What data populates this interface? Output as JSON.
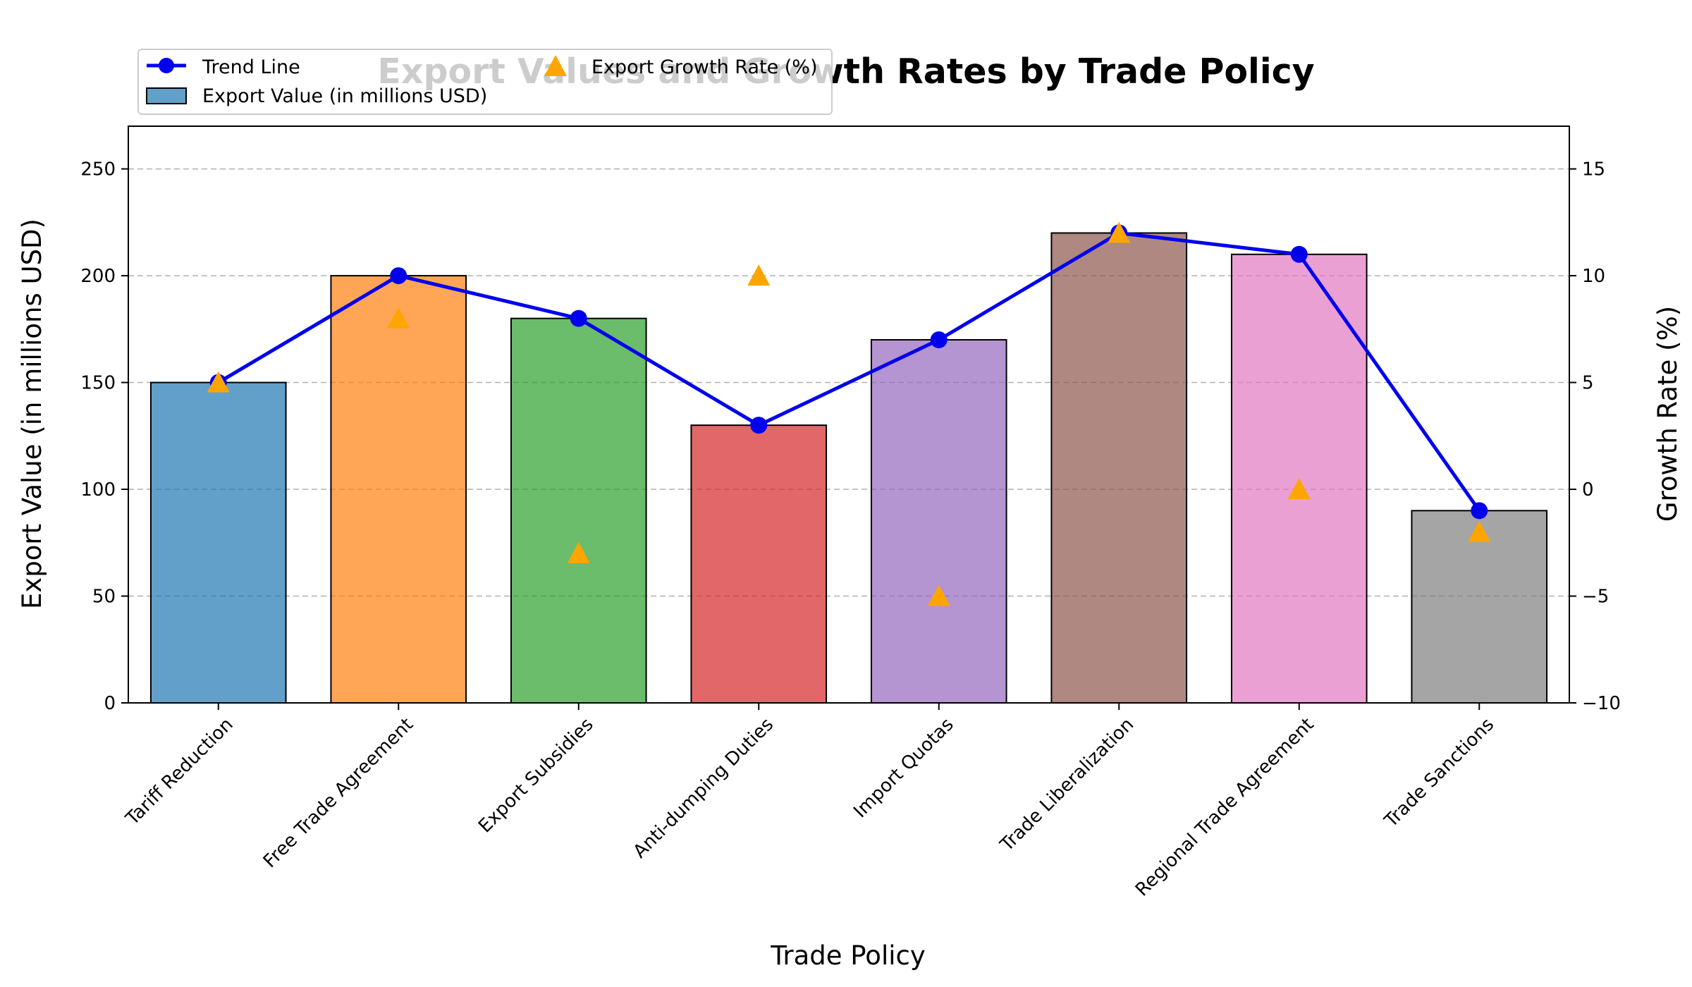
{
  "chart_data": {
    "type": "bar",
    "title": "Export Values and Growth Rates by Trade Policy",
    "xlabel": "Trade Policy",
    "ylabel": "Export Value (in millions USD)",
    "y2label": "Growth Rate (%)",
    "categories": [
      "Tariff Reduction",
      "Free Trade Agreement",
      "Export Subsidies",
      "Anti-dumping Duties",
      "Import Quotas",
      "Trade Liberalization",
      "Regional Trade Agreement",
      "Trade Sanctions"
    ],
    "ylim": [
      0,
      270
    ],
    "y2lim": [
      -10,
      17
    ],
    "yticks": [
      0,
      50,
      100,
      150,
      200,
      250
    ],
    "y2ticks": [
      -10,
      -5,
      0,
      5,
      10,
      15
    ],
    "y2tick_labels": [
      "−10",
      "−5",
      "0",
      "5",
      "10",
      "15"
    ],
    "grid": true,
    "legend_position": "top-left",
    "series": [
      {
        "name": "Export Value (in millions USD)",
        "type": "bar",
        "axis": "left",
        "values": [
          150,
          200,
          180,
          130,
          170,
          220,
          210,
          90
        ]
      },
      {
        "name": "Trend Line",
        "type": "line",
        "axis": "left",
        "values": [
          150,
          200,
          180,
          130,
          170,
          220,
          210,
          90
        ],
        "color": "#0000ee"
      },
      {
        "name": "Export Growth Rate (%)",
        "type": "scatter",
        "axis": "right",
        "values": [
          5,
          8,
          -3,
          10,
          -5,
          12,
          0,
          -2
        ],
        "color": "#ffa500"
      }
    ],
    "bar_colors": [
      "#1f77b4",
      "#ff7f0e",
      "#2ca02c",
      "#d62728",
      "#9467bd",
      "#8c564b",
      "#e377c2",
      "#7f7f7f"
    ]
  }
}
